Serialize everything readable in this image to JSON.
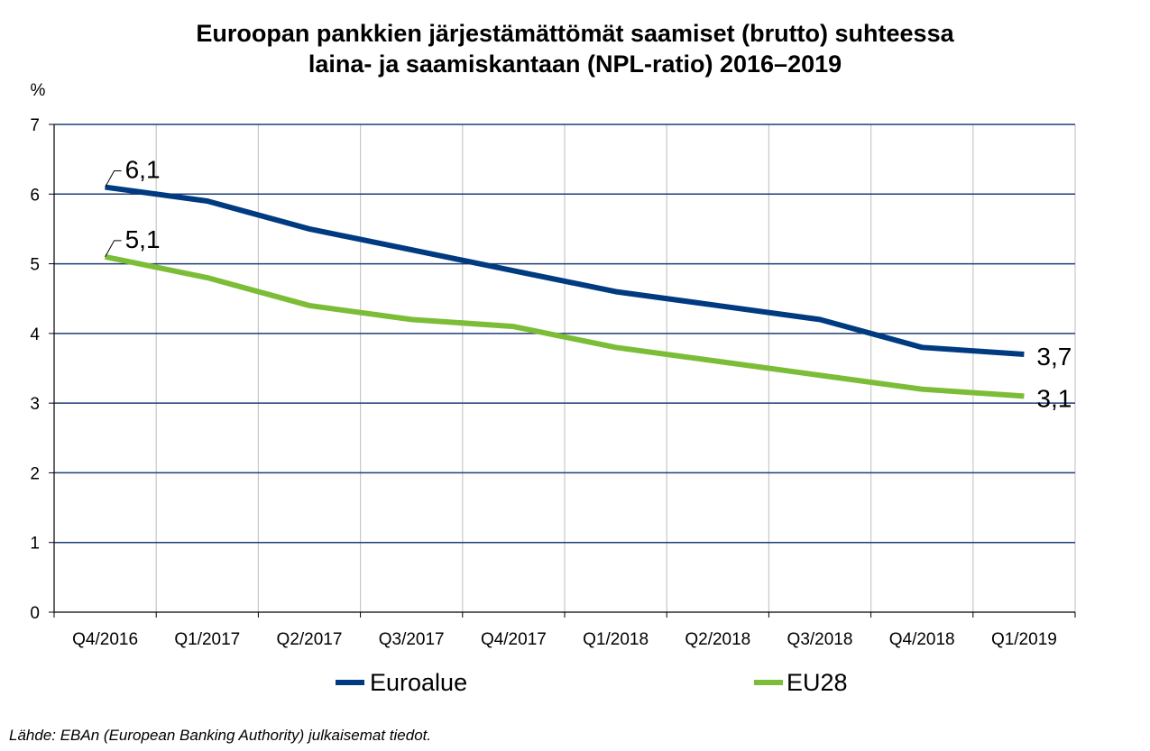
{
  "chart_data": {
    "type": "line",
    "title_line1": "Euroopan pankkien järjestämättömät saamiset (brutto) suhteessa",
    "title_line2": "laina- ja saamiskantaan (NPL-ratio) 2016–2019",
    "ylabel": "%",
    "ylim": [
      0,
      7
    ],
    "yticks": [
      "0",
      "1",
      "2",
      "3",
      "4",
      "5",
      "6",
      "7"
    ],
    "categories": [
      "Q4/2016",
      "Q1/2017",
      "Q2/2017",
      "Q3/2017",
      "Q4/2017",
      "Q1/2018",
      "Q2/2018",
      "Q3/2018",
      "Q4/2018",
      "Q1/2019"
    ],
    "grid": true,
    "legend_position": "bottom",
    "series": [
      {
        "name": "Euroalue",
        "color": "#003A80",
        "values": [
          6.1,
          5.9,
          5.5,
          5.2,
          4.9,
          4.6,
          4.4,
          4.2,
          3.8,
          3.7
        ],
        "first_label": "6,1",
        "last_label": "3,7"
      },
      {
        "name": "EU28",
        "color": "#7CBD37",
        "values": [
          5.1,
          4.8,
          4.4,
          4.2,
          4.1,
          3.8,
          3.6,
          3.4,
          3.2,
          3.1
        ],
        "first_label": "5,1",
        "last_label": "3,1"
      }
    ]
  },
  "source_note": "Lähde: EBAn (European Banking Authority) julkaisemat tiedot."
}
